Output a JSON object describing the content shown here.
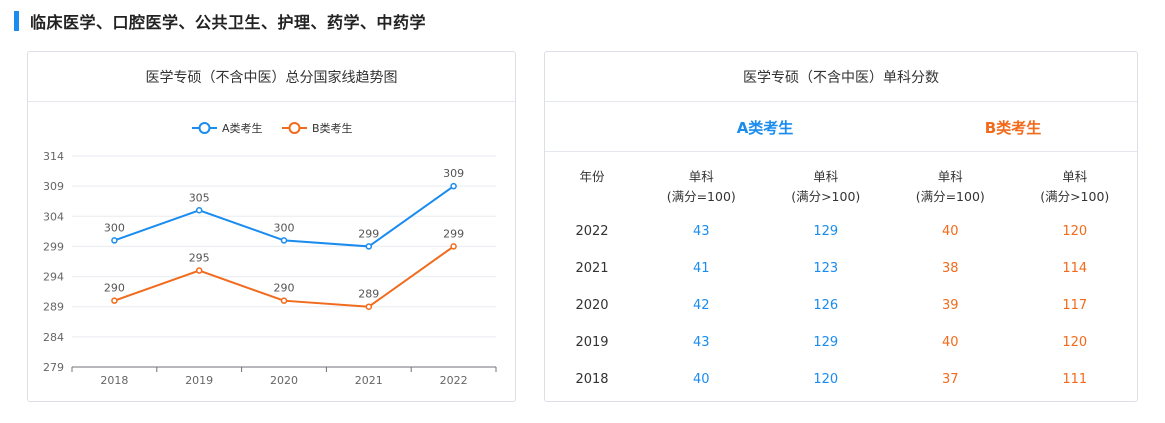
{
  "section": {
    "title": "临床医学、口腔医学、公共卫生、护理、药学、中药学"
  },
  "left_card": {
    "title": "医学专硕（不含中医）总分国家线趋势图"
  },
  "right_card": {
    "title": "医学专硕（不含中医）单科分数",
    "category_a": "A类考生",
    "category_b": "B类考生",
    "header_year": "年份",
    "header_cols": [
      {
        "line1": "单科",
        "line2": "(满分=100)"
      },
      {
        "line1": "单科",
        "line2": "(满分>100)"
      },
      {
        "line1": "单科",
        "line2": "(满分=100)"
      },
      {
        "line1": "单科",
        "line2": "(满分>100)"
      }
    ],
    "rows": [
      {
        "year": "2022",
        "a100": "43",
        "a_over": "129",
        "b100": "40",
        "b_over": "120"
      },
      {
        "year": "2021",
        "a100": "41",
        "a_over": "123",
        "b100": "38",
        "b_over": "114"
      },
      {
        "year": "2020",
        "a100": "42",
        "a_over": "126",
        "b100": "39",
        "b_over": "117"
      },
      {
        "year": "2019",
        "a100": "43",
        "a_over": "129",
        "b100": "40",
        "b_over": "120"
      },
      {
        "year": "2018",
        "a100": "40",
        "a_over": "120",
        "b100": "37",
        "b_over": "111"
      }
    ]
  },
  "colors": {
    "series_a": "#1a8cef",
    "series_b": "#f26a1b",
    "accent": "#1a8cef"
  },
  "chart_data": {
    "type": "line",
    "title": "医学专硕（不含中医）总分国家线趋势图",
    "x": [
      "2018",
      "2019",
      "2020",
      "2021",
      "2022"
    ],
    "series": [
      {
        "name": "A类考生",
        "values": [
          300,
          305,
          300,
          299,
          309
        ]
      },
      {
        "name": "B类考生",
        "values": [
          290,
          295,
          290,
          289,
          299
        ]
      }
    ],
    "yticks": [
      279,
      284,
      289,
      294,
      299,
      304,
      309,
      314
    ],
    "ylim": [
      279,
      314
    ],
    "grid": true,
    "legend": "top-center",
    "data_labels": true
  }
}
